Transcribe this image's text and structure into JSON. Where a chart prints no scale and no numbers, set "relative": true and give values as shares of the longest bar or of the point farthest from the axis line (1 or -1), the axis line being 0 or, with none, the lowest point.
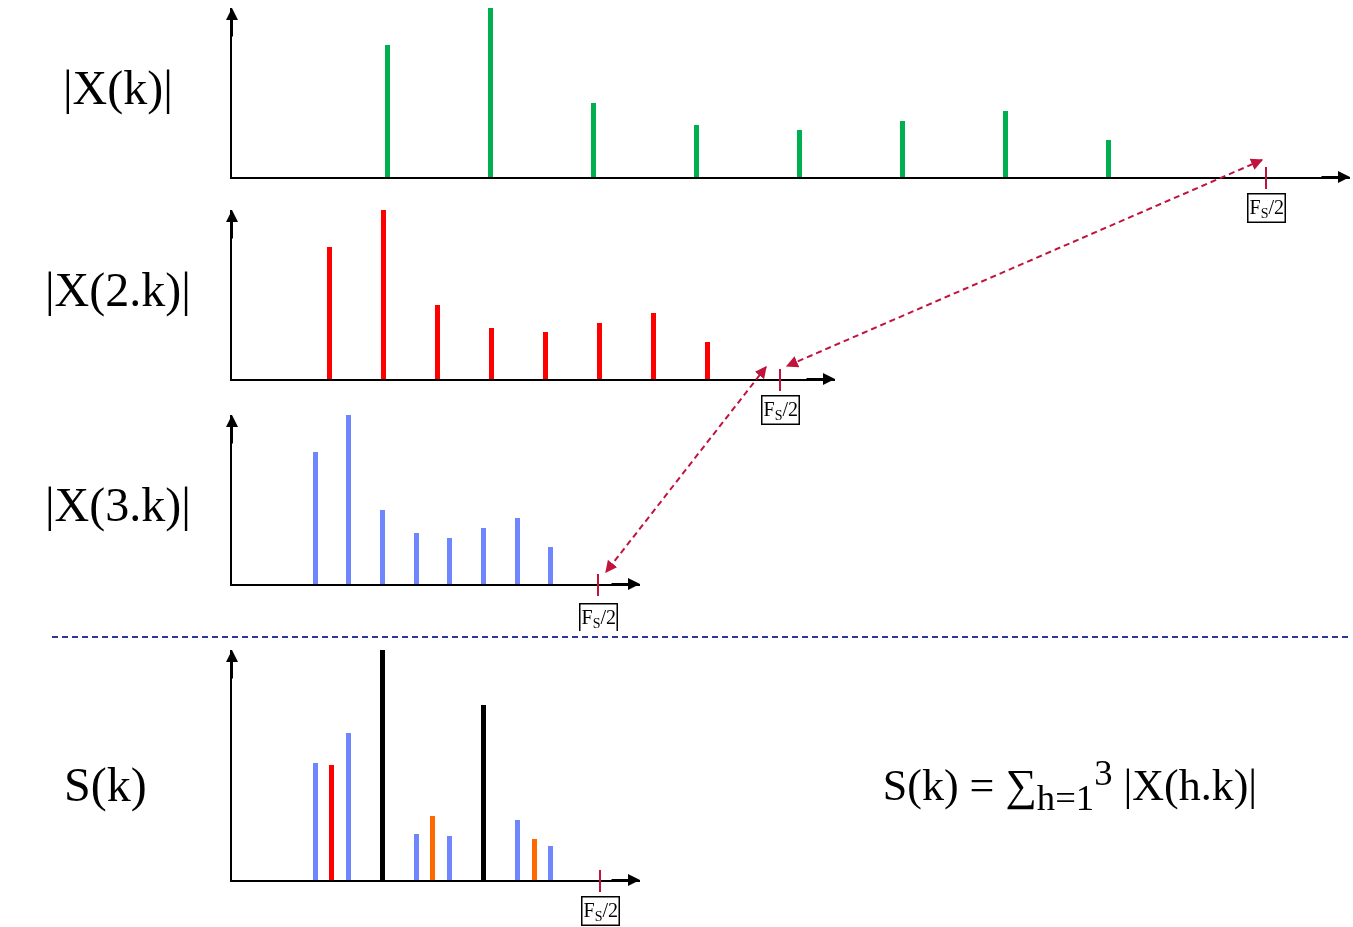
{
  "chart_data": [
    {
      "type": "bar",
      "relative": true,
      "ylabel": "|X(k)|",
      "color": "#00b050",
      "annotations": [
        "F$_{S}$/2"
      ],
      "categories": [
        null,
        null,
        null,
        null,
        null,
        null,
        null,
        null
      ],
      "values": [
        0.78,
        1,
        0.44,
        0.31,
        0.28,
        0.33,
        0.39,
        0.22
      ]
    },
    {
      "type": "bar",
      "relative": true,
      "ylabel": "|X(2.k)|",
      "color": "#ff0000",
      "annotations": [
        "F$_{S}$/2"
      ],
      "categories": [
        null,
        null,
        null,
        null,
        null,
        null,
        null,
        null
      ],
      "values": [
        0.78,
        1,
        0.44,
        0.3,
        0.28,
        0.33,
        0.39,
        0.22
      ]
    },
    {
      "type": "bar",
      "relative": true,
      "ylabel": "|X(3.k)|",
      "color": "#6f86ff",
      "annotations": [
        "F$_{S}$/2"
      ],
      "categories": [
        null,
        null,
        null,
        null,
        null,
        null,
        null,
        null
      ],
      "values": [
        0.78,
        1,
        0.44,
        0.3,
        0.27,
        0.33,
        0.39,
        0.22
      ]
    },
    {
      "type": "bar",
      "relative": true,
      "ylabel": "S(k)",
      "annotations": [
        "F$_{S}$/2",
        "S(k) = ∑$_{h=1}$$^{3}$ |X(h.k)|"
      ],
      "categories": [
        null,
        null,
        null,
        null,
        null,
        null,
        null,
        null,
        null,
        null,
        null
      ],
      "values": [
        0.51,
        0.5,
        0.64,
        1,
        0.2,
        0.28,
        0.19,
        0.76,
        0.26,
        0.18,
        0.15
      ],
      "colors": [
        "#6f86ff",
        "#ff0000",
        "#6f86ff",
        "#000000",
        "#6f86ff",
        "#ff6a00",
        "#6f86ff",
        "#000000",
        "#6f86ff",
        "#ff6a00",
        "#6f86ff"
      ]
    }
  ]
}
